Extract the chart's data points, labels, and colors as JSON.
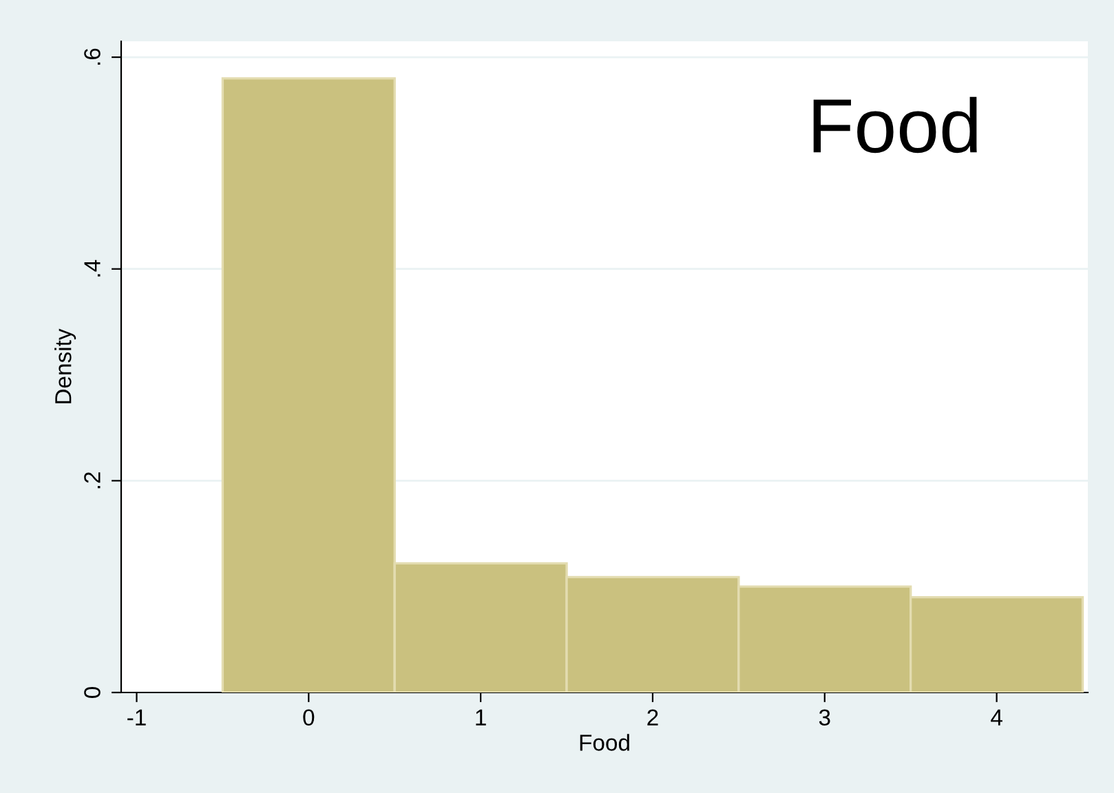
{
  "chart_data": {
    "type": "histogram",
    "xlabel": "Food",
    "ylabel": "Density",
    "bins": [
      -0.5,
      0.5,
      1.5,
      2.5,
      3.5,
      4.5
    ],
    "values": [
      0.58,
      0.122,
      0.109,
      0.1,
      0.09
    ],
    "color": "#cac17f",
    "xlim": [
      -1.09,
      4.53
    ],
    "ylim": [
      0,
      0.615
    ],
    "xticks": [
      {
        "value": -1,
        "label": "-1"
      },
      0,
      1,
      2,
      3,
      4
    ],
    "yticks": [
      {
        "value": 0,
        "label": "0"
      },
      {
        "value": 0.2,
        "label": ".2"
      },
      {
        "value": 0.4,
        "label": ".4"
      },
      {
        "value": 0.6,
        "label": ".6"
      }
    ],
    "grid": "y",
    "annotations": [
      "Food"
    ]
  }
}
